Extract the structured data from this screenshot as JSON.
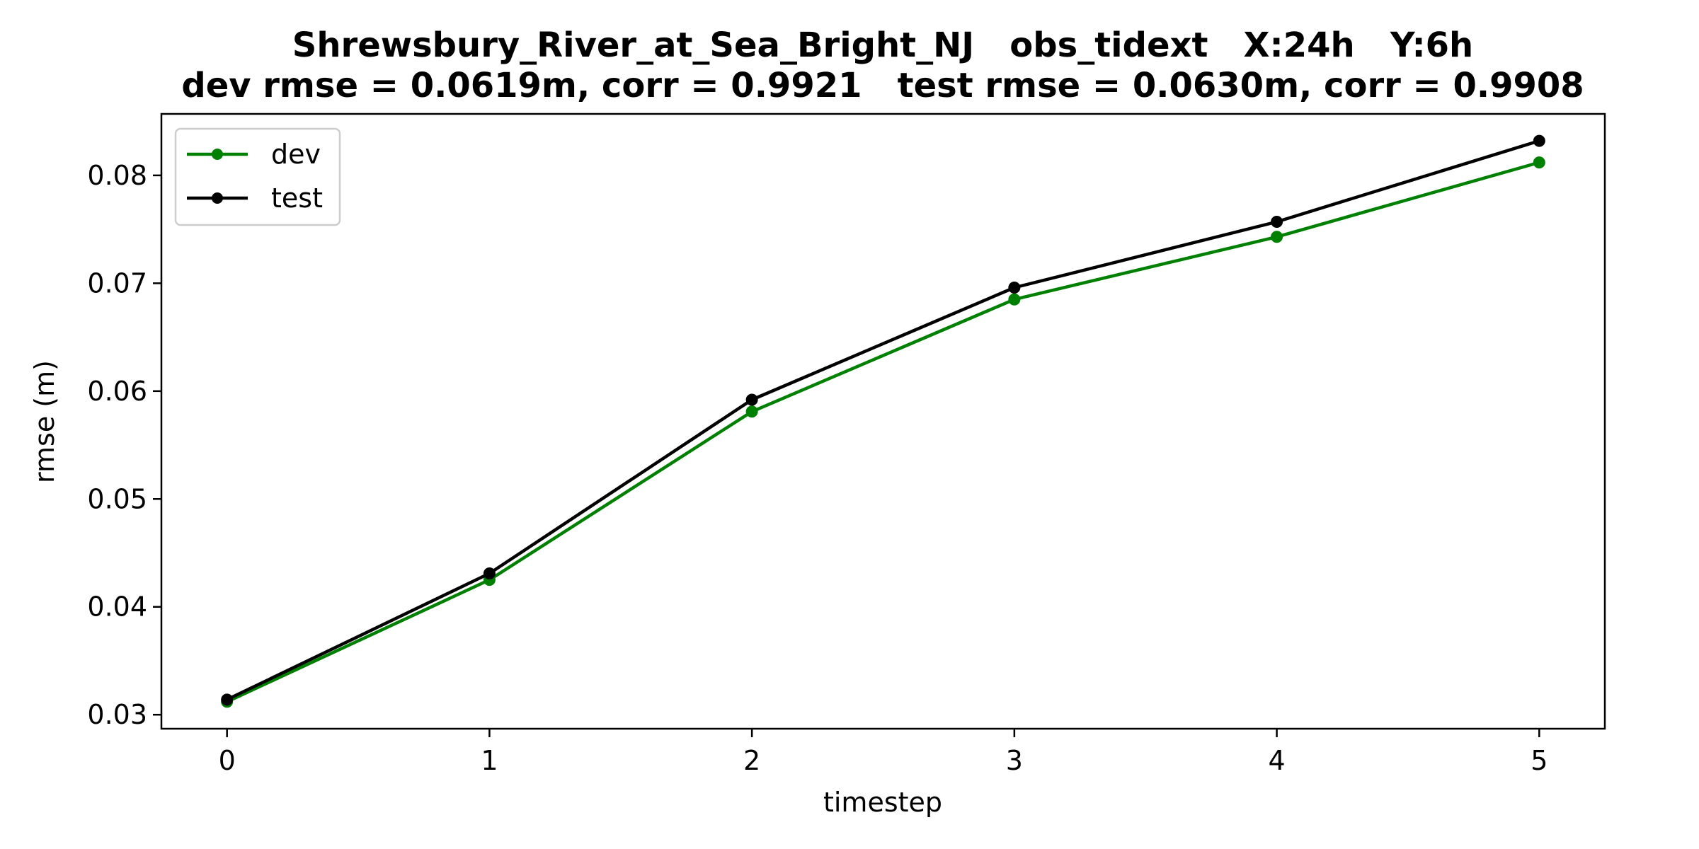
{
  "chart_data": {
    "type": "line",
    "title": "Shrewsbury_River_at_Sea_Bright_NJ   obs_tidext   X:24h   Y:6h",
    "subtitle": "dev rmse = 0.0619m, corr = 0.9921   test rmse = 0.0630m, corr = 0.9908",
    "xlabel": "timestep",
    "ylabel": "rmse (m)",
    "x": [
      0,
      1,
      2,
      3,
      4,
      5
    ],
    "x_ticks": [
      "0",
      "1",
      "2",
      "3",
      "4",
      "5"
    ],
    "y_ticks": [
      "0.03",
      "0.04",
      "0.05",
      "0.06",
      "0.07",
      "0.08"
    ],
    "xlim": [
      -0.25,
      5.25
    ],
    "ylim": [
      0.0287,
      0.0857
    ],
    "grid": false,
    "legend_position": "top-left",
    "series": [
      {
        "name": "dev",
        "color": "#008000",
        "values": [
          0.0312,
          0.0425,
          0.0581,
          0.0685,
          0.0743,
          0.0812
        ]
      },
      {
        "name": "test",
        "color": "#000000",
        "values": [
          0.0314,
          0.0431,
          0.0592,
          0.0696,
          0.0757,
          0.0832
        ]
      }
    ]
  }
}
